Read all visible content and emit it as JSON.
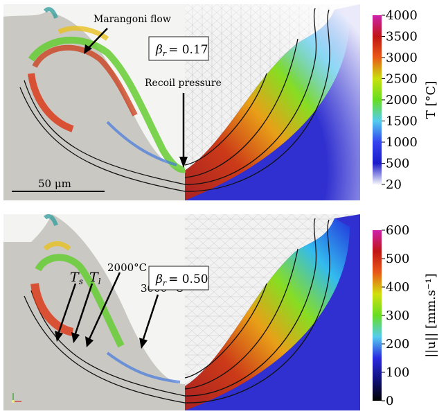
{
  "top_panel": {
    "annotation_marangoni": "Marangoni flow",
    "annotation_recoil": "Recoil pressure",
    "beta_symbol": "β",
    "beta_sub": "r",
    "beta_value": "= 0.17",
    "scale_bar": "50 μm"
  },
  "bottom_panel": {
    "label_ts_symbol": "T",
    "label_ts_sub": "s",
    "label_tl_symbol": "T",
    "label_tl_sub": "l",
    "label_2000": "2000°C",
    "label_3000": "3000 °C",
    "beta_symbol": "β",
    "beta_sub": "r",
    "beta_value": "= 0.50"
  },
  "colorbar_temperature": {
    "title": "T [°C]",
    "ticks": [
      "4000",
      "3500",
      "3000",
      "2500",
      "2000",
      "1500",
      "1000",
      "500",
      "20"
    ],
    "stops": [
      "#f6f6fb",
      "#1a1ac8",
      "#3344ee",
      "#55ccee",
      "#66dd22",
      "#c8e010",
      "#e85a18",
      "#c01515",
      "#cc22aa"
    ]
  },
  "colorbar_velocity": {
    "title": "||u|| [mm.s⁻¹]",
    "ticks": [
      "600",
      "500",
      "400",
      "300",
      "200",
      "100",
      "0"
    ],
    "stops": [
      "#000000",
      "#10107a",
      "#2a2ae0",
      "#55ccee",
      "#66dd22",
      "#d0e010",
      "#e85a18",
      "#c01515",
      "#cc22aa"
    ]
  }
}
